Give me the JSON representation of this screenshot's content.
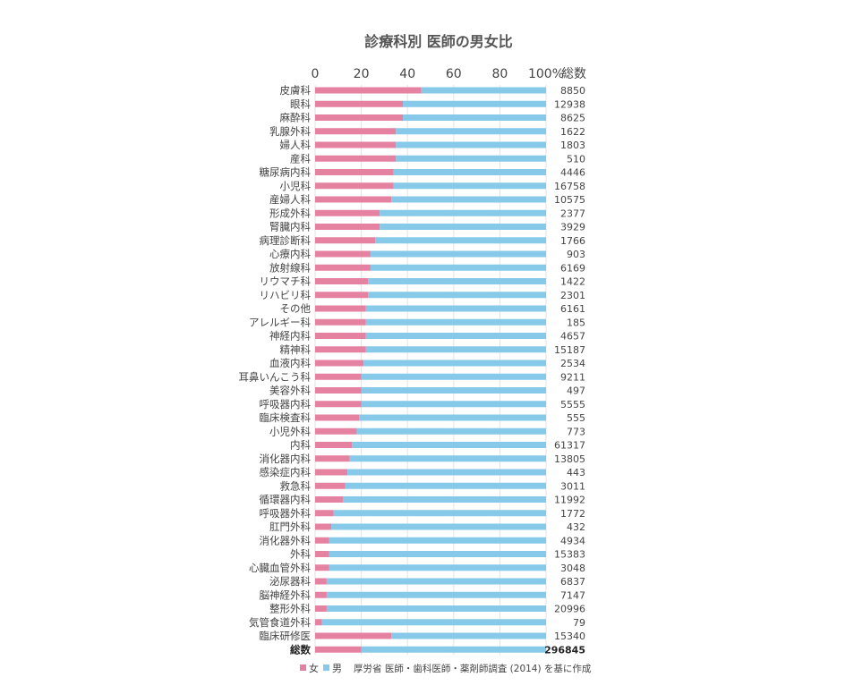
{
  "chart_data": {
    "type": "bar",
    "stacked": true,
    "orientation": "horizontal",
    "title": "診療科別 医師の男女比",
    "xlim": [
      0,
      100
    ],
    "x_ticks": [
      "0",
      "20",
      "40",
      "60",
      "80",
      "100%"
    ],
    "count_header": "総数",
    "grid": true,
    "legend_position": "bottom-left",
    "legend": [
      {
        "name": "女",
        "color": "#e582a2"
      },
      {
        "name": "男",
        "color": "#86c9e8"
      }
    ],
    "source": "厚労省 医師・歯科医師・薬剤師調査 (2014) を基に作成",
    "categories": [
      "皮膚科",
      "眼科",
      "麻酔科",
      "乳腺外科",
      "婦人科",
      "産科",
      "糖尿病内科",
      "小児科",
      "産婦人科",
      "形成外科",
      "腎臓内科",
      "病理診断科",
      "心療内科",
      "放射線科",
      "リウマチ科",
      "リハビリ科",
      "その他",
      "アレルギー科",
      "神経内科",
      "精神科",
      "血液内科",
      "耳鼻いんこう科",
      "美容外科",
      "呼吸器内科",
      "臨床検査科",
      "小児外科",
      "内科",
      "消化器内科",
      "感染症内科",
      "救急科",
      "循環器内科",
      "呼吸器外科",
      "肛門外科",
      "消化器外科",
      "外科",
      "心臓血管外科",
      "泌尿器科",
      "脳神経外科",
      "整形外科",
      "気管食道外科",
      "臨床研修医",
      "総数"
    ],
    "female_percent": [
      46,
      38,
      38,
      35,
      35,
      35,
      34,
      34,
      33,
      28,
      28,
      26,
      24,
      24,
      23,
      23,
      22,
      22,
      22,
      22,
      21,
      20,
      20,
      20,
      19,
      18,
      16,
      15,
      14,
      13,
      12,
      8,
      7,
      6,
      6,
      6,
      5,
      5,
      5,
      3,
      33,
      20
    ],
    "totals": [
      "8850",
      "12938",
      "8625",
      "1622",
      "1803",
      "510",
      "4446",
      "16758",
      "10575",
      "2377",
      "3929",
      "1766",
      "903",
      "6169",
      "1422",
      "2301",
      "6161",
      "185",
      "4657",
      "15187",
      "2534",
      "9211",
      "497",
      "5555",
      "555",
      "773",
      "61317",
      "13805",
      "443",
      "3011",
      "11992",
      "1772",
      "432",
      "4934",
      "15383",
      "3048",
      "6837",
      "7147",
      "20996",
      "79",
      "15340",
      "296845"
    ]
  }
}
